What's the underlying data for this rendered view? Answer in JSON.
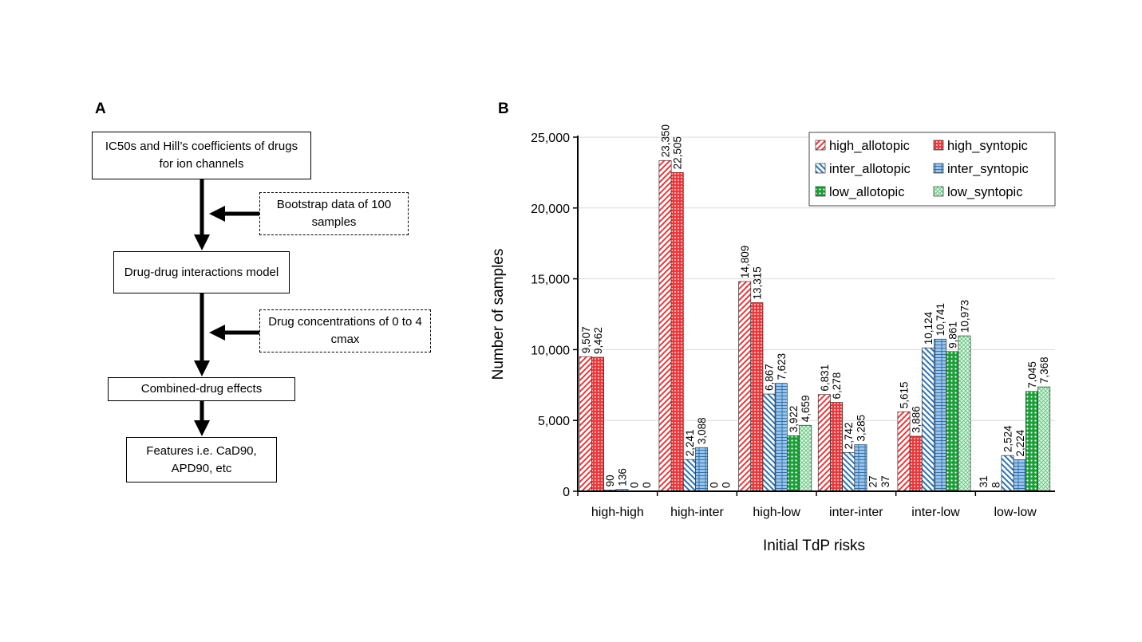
{
  "panel_a": {
    "label": "A",
    "boxes": {
      "inputs": "IC50s and Hill’s coefficients of drugs for ion channels",
      "bootstrap": "Bootstrap data of 100 samples",
      "model": "Drug-drug interactions model",
      "concentrations": "Drug concentrations of 0 to 4 cmax",
      "combined": "Combined-drug effects",
      "features": "Features i.e. CaD90, APD90, etc"
    }
  },
  "panel_b": {
    "label": "B"
  },
  "chart_data": {
    "type": "bar",
    "title": "",
    "xlabel": "Initial TdP risks",
    "ylabel": "Number of samples",
    "ylim": [
      0,
      25000
    ],
    "yticks": [
      0,
      5000,
      10000,
      15000,
      20000,
      25000
    ],
    "ytick_labels": [
      "0",
      "5,000",
      "10,000",
      "15,000",
      "20,000",
      "25,000"
    ],
    "grid": true,
    "legend_position": "top-right",
    "categories": [
      "high-high",
      "high-inter",
      "high-low",
      "inter-inter",
      "inter-low",
      "low-low"
    ],
    "series": [
      {
        "name": "high_allotopic",
        "color": "#e8393c",
        "pattern": "diagonal",
        "values": [
          9507,
          23350,
          14809,
          6831,
          5615,
          31
        ],
        "labels": [
          "9,507",
          "23,350",
          "14,809",
          "6,831",
          "5,615",
          "31"
        ]
      },
      {
        "name": "high_syntopic",
        "color": "#e8393c",
        "pattern": "dots",
        "values": [
          9462,
          22505,
          13315,
          6278,
          3886,
          8
        ],
        "labels": [
          "9,462",
          "22,505",
          "13,315",
          "6,278",
          "3,886",
          "8"
        ]
      },
      {
        "name": "inter_allotopic",
        "color": "#2e75b6",
        "pattern": "backdiagonal",
        "values": [
          90,
          2241,
          6867,
          2742,
          10124,
          2524
        ],
        "labels": [
          "90",
          "2,241",
          "6,867",
          "2,742",
          "10,124",
          "2,524"
        ]
      },
      {
        "name": "inter_syntopic",
        "color": "#5b9bd5",
        "pattern": "brick",
        "values": [
          136,
          3088,
          7623,
          3285,
          10741,
          2224
        ],
        "labels": [
          "136",
          "3,088",
          "7,623",
          "3,285",
          "10,741",
          "2,224"
        ]
      },
      {
        "name": "low_allotopic",
        "color": "#1e9e3a",
        "pattern": "bigdots",
        "values": [
          0,
          0,
          3922,
          27,
          9861,
          7045
        ],
        "labels": [
          "0",
          "0",
          "3,922",
          "27",
          "9,861",
          "7,045"
        ]
      },
      {
        "name": "low_syntopic",
        "color": "#5cc17a",
        "pattern": "lattice",
        "values": [
          0,
          0,
          4659,
          37,
          10973,
          7368
        ],
        "labels": [
          "0",
          "0",
          "4,659",
          "37",
          "10,973",
          "7,368"
        ]
      }
    ]
  }
}
